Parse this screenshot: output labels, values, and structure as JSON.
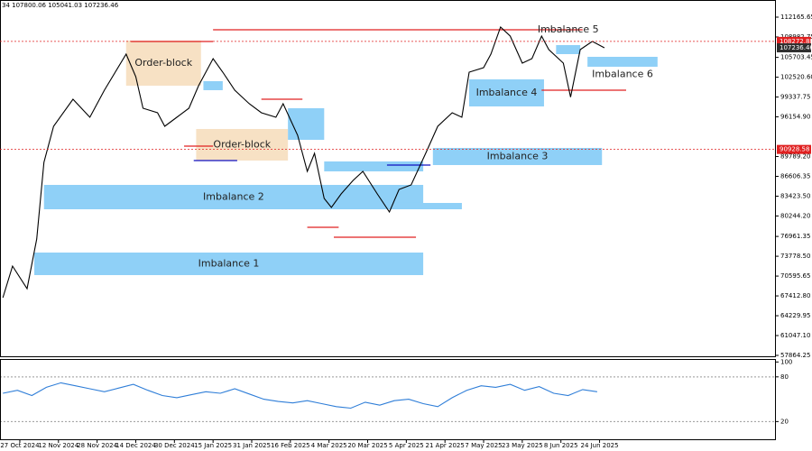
{
  "chart_data": [
    {
      "type": "line",
      "subtitle": "34 107800.06 105041.03 107236.46",
      "xlim": [
        -1.2,
        320
      ],
      "ylim": [
        57574,
        114917
      ],
      "xticks": [
        {
          "value": 7,
          "label": "27 Oct 2024"
        },
        {
          "value": 23,
          "label": "12 Nov 2024"
        },
        {
          "value": 39,
          "label": "28 Nov 2024"
        },
        {
          "value": 55,
          "label": "14 Dec 2024"
        },
        {
          "value": 71,
          "label": "30 Dec 2024"
        },
        {
          "value": 87,
          "label": "15 Jan 2025"
        },
        {
          "value": 103,
          "label": "31 Jan 2025"
        },
        {
          "value": 119,
          "label": "16 Feb 2025"
        },
        {
          "value": 135,
          "label": "4 Mar 2025"
        },
        {
          "value": 151,
          "label": "20 Mar 2025"
        },
        {
          "value": 167,
          "label": "5 Apr 2025"
        },
        {
          "value": 183,
          "label": "21 Apr 2025"
        },
        {
          "value": 199,
          "label": "7 May 2025"
        },
        {
          "value": 215,
          "label": "23 May 2025"
        },
        {
          "value": 231,
          "label": "8 Jun 2025"
        },
        {
          "value": 247,
          "label": "24 Jun 2025"
        }
      ],
      "yticks": [
        {
          "value": 57864.25,
          "label": "57864.25"
        },
        {
          "value": 61047.1,
          "label": "61047.10"
        },
        {
          "value": 64229.95,
          "label": "64229.95"
        },
        {
          "value": 67412.8,
          "label": "67412.80"
        },
        {
          "value": 70595.65,
          "label": "70595.65"
        },
        {
          "value": 73778.5,
          "label": "73778.50"
        },
        {
          "value": 76961.35,
          "label": "76961.35"
        },
        {
          "value": 80244.2,
          "label": "80244.20"
        },
        {
          "value": 83423.5,
          "label": "83423.50"
        },
        {
          "value": 86606.35,
          "label": "86606.35"
        },
        {
          "value": 89789.2,
          "label": "89789.20"
        },
        {
          "value": 96154.9,
          "label": "96154.90"
        },
        {
          "value": 99337.75,
          "label": "99337.75"
        },
        {
          "value": 102520.6,
          "label": "102520.60"
        },
        {
          "value": 105703.45,
          "label": "105703.45"
        },
        {
          "value": 108982.75,
          "label": "108982.75"
        },
        {
          "value": 112165.65,
          "label": "112165.65"
        }
      ],
      "series": [
        {
          "color": "#000000",
          "x": [
            0,
            4,
            10,
            14,
            17,
            21,
            29,
            36,
            42,
            51,
            55,
            58,
            64,
            67,
            72,
            77,
            81,
            87,
            91,
            96,
            102,
            107,
            113,
            116,
            122,
            126,
            129,
            133,
            136,
            140,
            145,
            149,
            155,
            160,
            164,
            169,
            175,
            180,
            186,
            190,
            193,
            199,
            202,
            206,
            210,
            215,
            219,
            223,
            226,
            232,
            235,
            239,
            244,
            249
          ],
          "values": [
            67130,
            72200,
            68580,
            76550,
            88850,
            94650,
            98990,
            96090,
            100440,
            106230,
            102610,
            97540,
            96820,
            94650,
            96090,
            97540,
            101160,
            105510,
            103330,
            100440,
            98270,
            96820,
            96090,
            98270,
            93200,
            87410,
            90300,
            83060,
            81610,
            83790,
            85960,
            87410,
            83790,
            80890,
            84510,
            85230,
            90300,
            94650,
            96820,
            96090,
            103330,
            104060,
            106230,
            110570,
            109130,
            104780,
            105510,
            109130,
            106950,
            104780,
            99340,
            106950,
            108270,
            107240
          ]
        }
      ],
      "zones": [
        {
          "label": "Order-block",
          "x": [
            51,
            82
          ],
          "y": [
            101161,
            108401
          ],
          "color": "#f7e1c4"
        },
        {
          "label": "Order-block",
          "x": [
            80,
            118
          ],
          "y": [
            89142,
            94210
          ],
          "color": "#f7e1c4"
        },
        {
          "label": "Imbalance 1",
          "x": [
            13,
            174
          ],
          "y": [
            70753,
            74373
          ],
          "color": "#8fd0f7"
        },
        {
          "label": "Imbalance 2",
          "x": [
            17,
            174
          ],
          "y": [
            81323,
            85233
          ],
          "color": "#8fd0f7"
        },
        {
          "label": "Imbalance 3",
          "x": [
            178,
            248
          ],
          "y": [
            88419,
            91169
          ],
          "color": "#8fd0f7"
        },
        {
          "label": "Imbalance 4",
          "x": [
            193,
            224
          ],
          "y": [
            97831,
            102175
          ],
          "color": "#8fd0f7"
        },
        {
          "label": "Imbalance 5",
          "x": [
            229,
            239
          ],
          "y": [
            106229,
            107677
          ],
          "color": "#8fd0f7"
        },
        {
          "label": "Imbalance 6",
          "x": [
            242,
            271
          ],
          "y": [
            104202,
            105795
          ],
          "color": "#8fd0f7"
        },
        {
          "label": null,
          "x": [
            83,
            91
          ],
          "y": [
            100440,
            101885
          ],
          "color": "#8fd0f7"
        },
        {
          "label": null,
          "x": [
            118,
            133
          ],
          "y": [
            92472,
            97541
          ],
          "color": "#8fd0f7"
        },
        {
          "label": null,
          "x": [
            133,
            174
          ],
          "y": [
            87405,
            88998
          ],
          "color": "#8fd0f7"
        },
        {
          "label": null,
          "x": [
            159,
            190
          ],
          "y": [
            81323,
            82337
          ],
          "color": "#8fd0f7"
        }
      ],
      "levels": [
        {
          "value": 108256,
          "x": [
            53,
            87
          ],
          "color": "#e02020"
        },
        {
          "value": 110138,
          "x": [
            87,
            240
          ],
          "color": "#e02020"
        },
        {
          "value": 98989,
          "x": [
            107,
            124
          ],
          "color": "#e02020"
        },
        {
          "value": 91459,
          "x": [
            75,
            87
          ],
          "color": "#e02020"
        },
        {
          "value": 89142,
          "x": [
            79,
            97
          ],
          "color": "#1010c0"
        },
        {
          "value": 78427,
          "x": [
            126,
            139
          ],
          "color": "#e02020"
        },
        {
          "value": 76834,
          "x": [
            137,
            171
          ],
          "color": "#e02020"
        },
        {
          "value": 88418,
          "x": [
            159,
            177
          ],
          "color": "#1010c0"
        },
        {
          "value": 100440,
          "x": [
            223,
            258
          ],
          "color": "#e02020"
        }
      ],
      "price_tags": [
        {
          "value": 108272.88,
          "color": "#e02020",
          "line": true
        },
        {
          "value": 107236.46,
          "color": "#303030",
          "line": false
        },
        {
          "value": 90928.58,
          "color": "#e02020",
          "line": true
        }
      ]
    },
    {
      "type": "line",
      "xlim": [
        -1.2,
        320
      ],
      "ylim": [
        -5,
        104
      ],
      "yticks": [
        20,
        80,
        100
      ],
      "levels": [
        20,
        80
      ],
      "series": [
        {
          "color": "#2f7ed8",
          "x": [
            0,
            6,
            12,
            18,
            24,
            30,
            36,
            42,
            48,
            54,
            60,
            66,
            72,
            78,
            84,
            90,
            96,
            102,
            108,
            114,
            120,
            126,
            132,
            138,
            144,
            150,
            156,
            162,
            168,
            174,
            180,
            186,
            192,
            198,
            204,
            210,
            216,
            222,
            228,
            234,
            240,
            246
          ],
          "values": [
            58,
            62,
            55,
            66,
            72,
            68,
            64,
            60,
            65,
            70,
            62,
            55,
            52,
            56,
            60,
            58,
            64,
            57,
            50,
            47,
            45,
            48,
            44,
            40,
            38,
            46,
            42,
            48,
            50,
            44,
            40,
            52,
            62,
            68,
            66,
            70,
            62,
            67,
            58,
            55,
            63,
            60
          ]
        }
      ]
    }
  ]
}
